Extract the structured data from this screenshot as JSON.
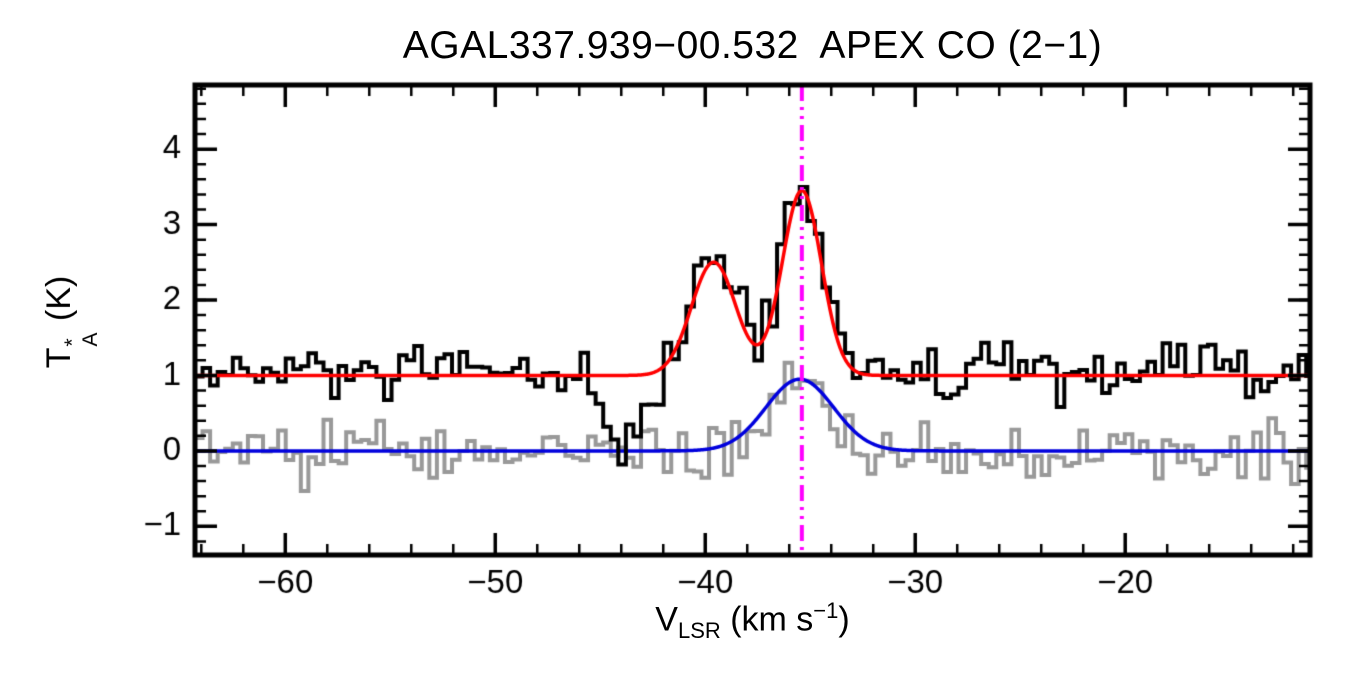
{
  "title": "AGAL337.939−00.532  APEX CO (2−1)",
  "labels": {
    "x": {
      "base": "V",
      "sub": "LSR",
      "mid": " (km s",
      "sup": "−1",
      "end": ")"
    },
    "y": {
      "base": "T",
      "sup": "*",
      "sub": "A",
      "end": " (K)"
    }
  },
  "chart_data": {
    "type": "line",
    "title": "AGAL337.939−00.532  APEX CO (2−1)",
    "xlabel": "V_LSR (km s^-1)",
    "ylabel": "T_A^* (K)",
    "xlim": [
      -64.3,
      -11.2
    ],
    "ylim": [
      -1.38,
      4.85
    ],
    "x_ticks": [
      -60,
      -50,
      -40,
      -30,
      -20
    ],
    "y_ticks": [
      -1,
      0,
      1,
      2,
      3,
      4
    ],
    "x_minor_step": 2,
    "y_minor_step": 0.2,
    "grid": false,
    "legend": false,
    "channel_width": 0.36,
    "marker_line": {
      "x": -35.4,
      "color": "#ff00ff",
      "style": "dash-dot-dot",
      "width": 4
    },
    "series": [
      {
        "name": "gray-spectrum-histogram",
        "style": "histogram",
        "color": "#999999",
        "line_width": 4,
        "baseline": 0.0,
        "noise_sigma": 0.2,
        "seed": 777,
        "gaussians": [
          {
            "center": -35.4,
            "amplitude": 1.1,
            "fwhm": 2.6
          }
        ]
      },
      {
        "name": "blue-gaussian-fit",
        "style": "curve",
        "color": "#0000dd",
        "line_width": 3.5,
        "baseline": 0.0,
        "gaussians": [
          {
            "center": -35.5,
            "amplitude": 0.95,
            "fwhm": 3.8
          }
        ]
      },
      {
        "name": "black-spectrum-histogram",
        "style": "histogram",
        "color": "#000000",
        "line_width": 4,
        "baseline": 1.0,
        "noise_sigma": 0.2,
        "seed": 12345,
        "gaussians": [
          {
            "center": -39.6,
            "amplitude": 1.6,
            "fwhm": 2.6
          },
          {
            "center": -35.4,
            "amplitude": 2.6,
            "fwhm": 2.3
          },
          {
            "center": -43.8,
            "amplitude": -1.05,
            "fwhm": 2.0
          }
        ]
      },
      {
        "name": "red-gaussian-fit",
        "style": "curve",
        "color": "#ff0000",
        "line_width": 3.5,
        "baseline": 1.0,
        "gaussians": [
          {
            "center": -39.6,
            "amplitude": 1.5,
            "fwhm": 2.5
          },
          {
            "center": -35.4,
            "amplitude": 2.45,
            "fwhm": 2.2
          }
        ]
      }
    ]
  }
}
